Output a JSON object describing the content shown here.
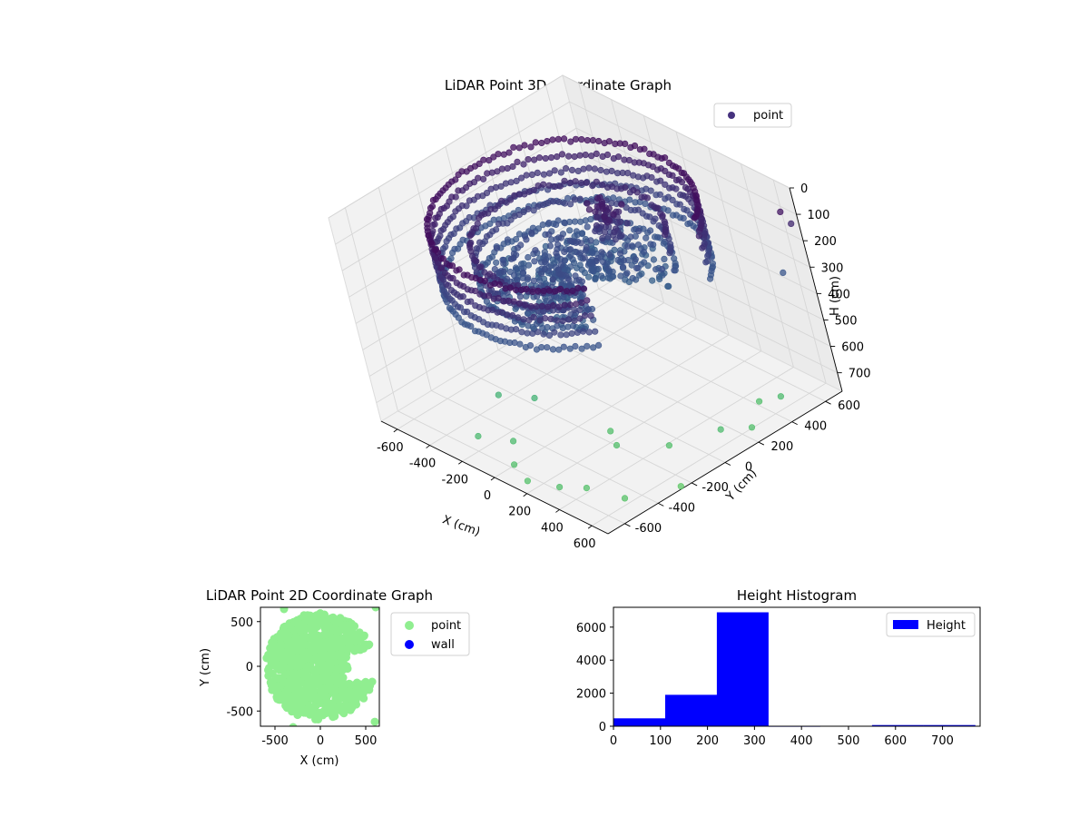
{
  "chart_data": [
    {
      "type": "scatter",
      "projection": "3d",
      "title": "LiDAR Point 3D Coordinate Graph",
      "xlabel": "X (cm)",
      "ylabel": "Y (cm)",
      "zlabel": "H (cm)",
      "xlim": [
        -700,
        700
      ],
      "ylim": [
        -700,
        700
      ],
      "zlim": [
        770,
        0
      ],
      "xticks": [
        -600,
        -400,
        -200,
        0,
        200,
        400,
        600
      ],
      "yticks": [
        -600,
        -400,
        -200,
        0,
        200,
        400,
        600
      ],
      "zticks": [
        0,
        100,
        200,
        300,
        400,
        500,
        600,
        700
      ],
      "grid": true,
      "legend": {
        "location": "upper-right",
        "entries": [
          "point"
        ]
      },
      "colormap": [
        "#440154",
        "#3b528b",
        "#21918c",
        "#5ec962"
      ],
      "series": [
        {
          "name": "point",
          "description_points": [
            {
              "shape": "outer-ring",
              "radius": 580,
              "h_range": [
                50,
                320
              ],
              "h_typical": 300
            },
            {
              "shape": "inner-ring",
              "radius": 420,
              "h_range": [
                100,
                300
              ],
              "h_typical": 260
            },
            {
              "shape": "floor-cluster",
              "h_typical": 260
            },
            {
              "shape": "sparse-outliers",
              "h_range": [
                0,
                770
              ]
            }
          ],
          "outliers": [
            [
              -150,
              -620,
              690
            ],
            [
              -20,
              -540,
              700
            ],
            [
              80,
              -640,
              720
            ],
            [
              -260,
              -380,
              660
            ],
            [
              -120,
              -300,
              660
            ],
            [
              220,
              -200,
              720
            ],
            [
              320,
              -260,
              720
            ],
            [
              500,
              -120,
              720
            ],
            [
              620,
              80,
              700
            ],
            [
              680,
              200,
              720
            ],
            [
              560,
              360,
              720
            ],
            [
              360,
              -640,
              720
            ],
            [
              200,
              -680,
              730
            ],
            [
              440,
              -560,
              730
            ],
            [
              610,
              -500,
              740
            ],
            [
              640,
              420,
              700
            ],
            [
              700,
              -260,
              760
            ],
            [
              700,
              620,
              60
            ],
            [
              700,
              660,
              120
            ],
            [
              690,
              560,
              270
            ]
          ]
        }
      ]
    },
    {
      "type": "scatter",
      "title": "LiDAR Point 2D Coordinate Graph",
      "xlabel": "X (cm)",
      "ylabel": "Y (cm)",
      "xlim": [
        -660,
        650
      ],
      "ylim": [
        -670,
        660
      ],
      "xticks": [
        -500,
        0,
        500
      ],
      "yticks": [
        -500,
        0,
        500
      ],
      "legend": {
        "location": "outside-right",
        "entries": [
          "point",
          "wall"
        ]
      },
      "colors": {
        "point": "#90ee90",
        "wall": "#0000ff"
      },
      "series": [
        {
          "name": "point",
          "shape": "filled-disk",
          "radius": 580,
          "cutout": "right-notch"
        },
        {
          "name": "wall",
          "values": []
        }
      ]
    },
    {
      "type": "bar",
      "subtype": "histogram",
      "title": "Height Histogram",
      "xlim": [
        0,
        780
      ],
      "ylim": [
        0,
        7200
      ],
      "xticks": [
        0,
        100,
        200,
        300,
        400,
        500,
        600,
        700
      ],
      "yticks": [
        0,
        2000,
        4000,
        6000
      ],
      "legend": {
        "location": "top-right",
        "entries": [
          "Height"
        ]
      },
      "color": "#0000ff",
      "series": [
        {
          "name": "Height",
          "bins": [
            {
              "from": 0,
              "to": 110,
              "count": 480
            },
            {
              "from": 110,
              "to": 220,
              "count": 1900
            },
            {
              "from": 220,
              "to": 330,
              "count": 6900
            },
            {
              "from": 330,
              "to": 440,
              "count": 20
            },
            {
              "from": 440,
              "to": 550,
              "count": 25
            },
            {
              "from": 550,
              "to": 660,
              "count": 70
            },
            {
              "from": 660,
              "to": 770,
              "count": 70
            }
          ]
        }
      ]
    }
  ]
}
